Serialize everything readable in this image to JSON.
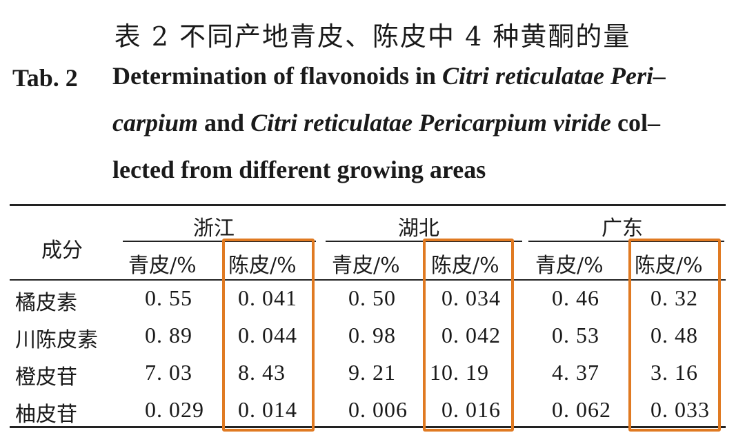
{
  "title": {
    "cn": "表 2    不同产地青皮、陈皮中 4 种黄酮的量",
    "tab_label": "Tab. 2",
    "en_line1_a": "Determination of flavonoids in ",
    "en_line1_b": "Citri reticulatae Peri–",
    "en_line2_a": "carpium",
    "en_line2_b": " and ",
    "en_line2_c": "Citri reticulatae Pericarpium viride",
    "en_line2_d": " col–",
    "en_line3": "lected from different growing areas"
  },
  "table": {
    "component_header": "成分",
    "regions": [
      "浙江",
      "湖北",
      "广东"
    ],
    "sub_headers": [
      "青皮/%",
      "陈皮/%",
      "青皮/%",
      "陈皮/%",
      "青皮/%",
      "陈皮/%"
    ],
    "rows": [
      {
        "name": "橘皮素",
        "values": [
          "0. 55",
          "0. 041",
          "0. 50",
          "0. 034",
          "0. 46",
          "0. 32"
        ]
      },
      {
        "name": "川陈皮素",
        "values": [
          "0. 89",
          "0. 044",
          "0. 98",
          "0. 042",
          "0. 53",
          "0. 48"
        ]
      },
      {
        "name": "橙皮苷",
        "values": [
          "7. 03",
          "8. 43",
          "9. 21",
          "10. 19",
          "4. 37",
          "3. 16"
        ]
      },
      {
        "name": "柚皮苷",
        "values": [
          "0. 029",
          "0. 014",
          "0. 006",
          "0. 016",
          "0. 062",
          "0. 033"
        ]
      }
    ]
  },
  "highlight_color": "#e07a22"
}
